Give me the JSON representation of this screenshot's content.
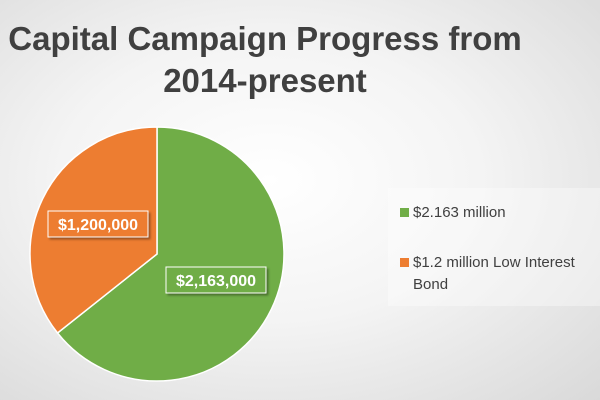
{
  "chart_data": {
    "type": "pie",
    "title_lines": [
      "Capital Campaign Progress from",
      "2014-present"
    ],
    "categories": [
      "$2.163 million",
      "$1.2 million Low Interest Bond"
    ],
    "values": [
      2163000,
      1200000
    ],
    "data_labels": [
      "$2,163,000",
      "$1,200,000"
    ],
    "colors": [
      "#70AD47",
      "#ED7D31"
    ],
    "legend_position": "right"
  }
}
